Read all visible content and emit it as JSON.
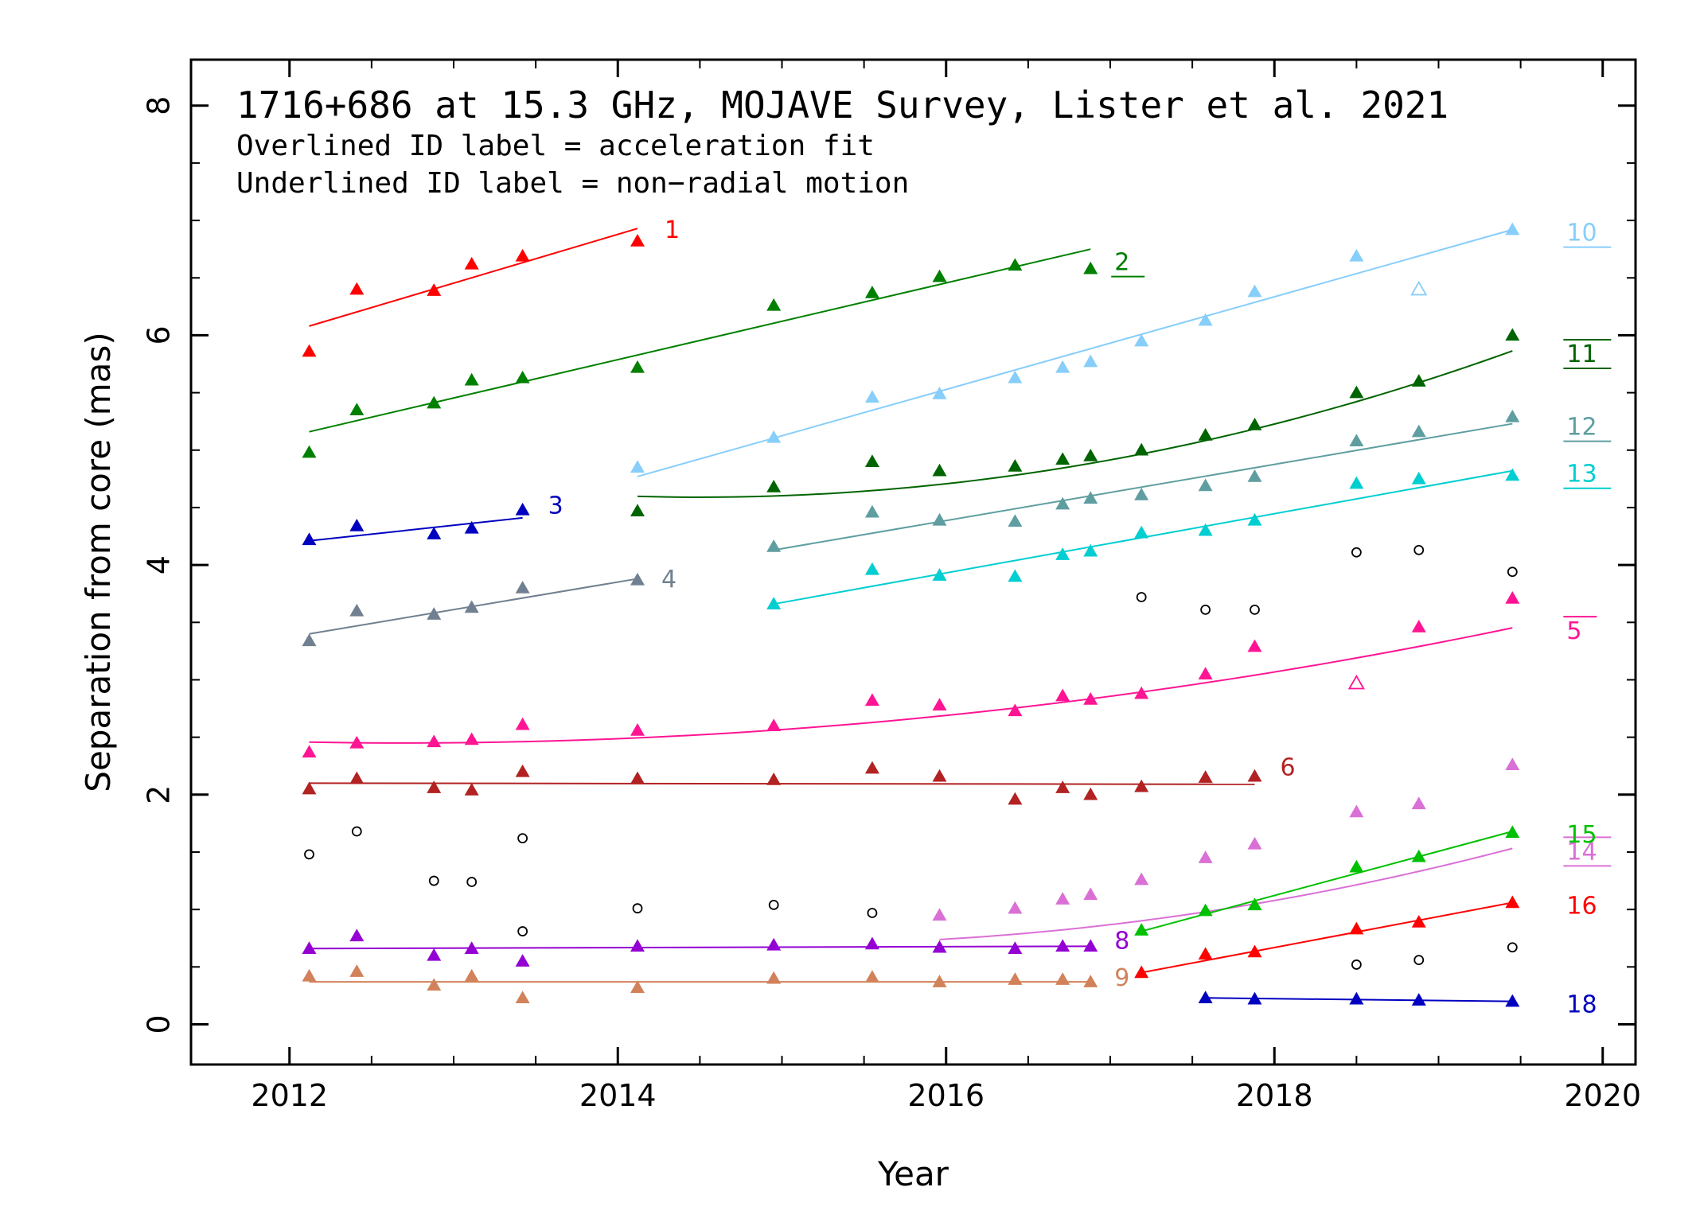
{
  "chart_data": {
    "type": "scatter",
    "title": "1716+686 at 15.3 GHz, MOJAVE Survey, Lister et al. 2021",
    "notes": [
      "Overlined ID label = acceleration fit",
      "Underlined ID label = non−radial motion"
    ],
    "xlabel": "Year",
    "ylabel": "Separation from core (mas)",
    "xlim": [
      2011.4,
      2020.2
    ],
    "ylim": [
      -0.35,
      8.4
    ],
    "xticks": [
      2012,
      2014,
      2016,
      2018,
      2020
    ],
    "yticks": [
      0,
      2,
      4,
      6,
      8
    ],
    "series": [
      {
        "name": "1",
        "color": "#ff0000",
        "decoration": "none",
        "x": [
          2012.12,
          2012.41,
          2012.88,
          2013.11,
          2013.42,
          2014.12
        ],
        "y": [
          5.86,
          6.4,
          6.39,
          6.62,
          6.69,
          6.82
        ],
        "fit": {
          "kind": "linear",
          "x": [
            2012.12,
            2014.12
          ],
          "y": [
            6.08,
            6.93
          ]
        }
      },
      {
        "name": "2",
        "color": "#008000",
        "decoration": "underline",
        "x": [
          2012.12,
          2012.41,
          2012.88,
          2013.11,
          2013.42,
          2014.12,
          2014.95,
          2015.55,
          2015.96,
          2016.42,
          2016.88
        ],
        "y": [
          4.98,
          5.35,
          5.41,
          5.61,
          5.63,
          5.72,
          6.26,
          6.37,
          6.51,
          6.61,
          6.58
        ],
        "fit": {
          "kind": "linear",
          "x": [
            2012.12,
            2016.88
          ],
          "y": [
            5.16,
            6.75
          ]
        }
      },
      {
        "name": "3",
        "color": "#0000c0",
        "decoration": "none",
        "x": [
          2012.12,
          2012.41,
          2012.88,
          2013.11,
          2013.42
        ],
        "y": [
          4.22,
          4.34,
          4.27,
          4.32,
          4.48
        ],
        "fit": {
          "kind": "linear",
          "x": [
            2012.12,
            2013.42
          ],
          "y": [
            4.21,
            4.41
          ]
        }
      },
      {
        "name": "4",
        "color": "#708090",
        "decoration": "none",
        "x": [
          2012.12,
          2012.41,
          2012.88,
          2013.11,
          2013.42,
          2014.12
        ],
        "y": [
          3.34,
          3.6,
          3.57,
          3.63,
          3.8,
          3.87
        ],
        "fit": {
          "kind": "linear",
          "x": [
            2012.12,
            2014.12
          ],
          "y": [
            3.4,
            3.88
          ]
        }
      },
      {
        "name": "5",
        "color": "#ff1493",
        "decoration": "overline",
        "x": [
          2012.12,
          2012.41,
          2012.88,
          2013.11,
          2013.42,
          2014.12,
          2014.95,
          2015.55,
          2015.96,
          2016.42,
          2016.71,
          2016.88,
          2017.19,
          2017.58,
          2017.88,
          2018.88,
          2019.45
        ],
        "y": [
          2.37,
          2.45,
          2.46,
          2.48,
          2.61,
          2.56,
          2.6,
          2.82,
          2.78,
          2.73,
          2.86,
          2.83,
          2.88,
          3.05,
          3.29,
          3.46,
          3.71
        ],
        "fit": {
          "kind": "quadratic",
          "x": [
            2012.12,
            2019.45
          ],
          "vertex": [
            2012.7,
            2.45
          ],
          "a": 0.022
        },
        "open_points": {
          "x": [
            2018.5
          ],
          "y": [
            2.97
          ]
        }
      },
      {
        "name": "6",
        "color": "#b22222",
        "decoration": "none",
        "x": [
          2012.12,
          2012.41,
          2012.88,
          2013.11,
          2013.42,
          2014.12,
          2014.95,
          2015.55,
          2015.96,
          2016.42,
          2016.71,
          2016.88,
          2017.19,
          2017.58,
          2017.88
        ],
        "y": [
          2.05,
          2.14,
          2.06,
          2.04,
          2.2,
          2.14,
          2.13,
          2.23,
          2.16,
          1.96,
          2.06,
          2.0,
          2.07,
          2.15,
          2.16
        ],
        "fit": {
          "kind": "linear",
          "x": [
            2012.12,
            2017.88
          ],
          "y": [
            2.1,
            2.09
          ]
        }
      },
      {
        "name": "8",
        "color": "#9400d3",
        "decoration": "none",
        "x": [
          2012.12,
          2012.41,
          2012.88,
          2013.11,
          2013.42,
          2014.12,
          2014.95,
          2015.55,
          2015.96,
          2016.42,
          2016.71,
          2016.88
        ],
        "y": [
          0.66,
          0.77,
          0.6,
          0.66,
          0.55,
          0.68,
          0.69,
          0.7,
          0.67,
          0.66,
          0.68,
          0.68
        ],
        "fit": {
          "kind": "linear",
          "x": [
            2012.12,
            2016.88
          ],
          "y": [
            0.66,
            0.68
          ]
        }
      },
      {
        "name": "9",
        "color": "#d2825a",
        "decoration": "none",
        "x": [
          2012.12,
          2012.41,
          2012.88,
          2013.11,
          2013.42,
          2014.12,
          2014.95,
          2015.55,
          2015.96,
          2016.42,
          2016.71,
          2016.88
        ],
        "y": [
          0.42,
          0.46,
          0.34,
          0.42,
          0.23,
          0.32,
          0.4,
          0.41,
          0.37,
          0.39,
          0.39,
          0.37
        ],
        "fit": {
          "kind": "linear",
          "x": [
            2012.12,
            2016.88
          ],
          "y": [
            0.37,
            0.37
          ]
        }
      },
      {
        "name": "10",
        "color": "#87cefa",
        "decoration": "underline",
        "x": [
          2014.12,
          2014.95,
          2015.55,
          2015.96,
          2016.42,
          2016.71,
          2016.88,
          2017.19,
          2017.58,
          2017.88,
          2018.5,
          2019.45
        ],
        "y": [
          4.85,
          5.11,
          5.46,
          5.49,
          5.63,
          5.72,
          5.77,
          5.95,
          6.13,
          6.38,
          6.69,
          6.92
        ],
        "fit": {
          "kind": "linear",
          "x": [
            2014.12,
            2019.45
          ],
          "y": [
            4.77,
            6.92
          ]
        },
        "open_points": {
          "x": [
            2018.88
          ],
          "y": [
            6.4
          ]
        }
      },
      {
        "name": "11",
        "color": "#006400",
        "decoration": "overline-underline",
        "x": [
          2014.12,
          2014.95,
          2015.55,
          2015.96,
          2016.42,
          2016.71,
          2016.88,
          2017.19,
          2017.58,
          2017.88,
          2018.5,
          2018.88,
          2019.45
        ],
        "y": [
          4.47,
          4.68,
          4.9,
          4.82,
          4.86,
          4.92,
          4.95,
          5.0,
          5.13,
          5.22,
          5.5,
          5.6,
          6.0
        ],
        "fit": {
          "kind": "quadratic",
          "x": [
            2014.12,
            2019.45
          ],
          "vertex": [
            2014.5,
            4.59
          ],
          "a": 0.052
        }
      },
      {
        "name": "12",
        "color": "#5f9ea0",
        "decoration": "underline",
        "x": [
          2014.95,
          2015.55,
          2015.96,
          2016.42,
          2016.71,
          2016.88,
          2017.19,
          2017.58,
          2017.88,
          2018.5,
          2018.88,
          2019.45
        ],
        "y": [
          4.16,
          4.46,
          4.39,
          4.38,
          4.53,
          4.58,
          4.61,
          4.69,
          4.77,
          5.08,
          5.16,
          5.29
        ],
        "fit": {
          "kind": "linear",
          "x": [
            2014.95,
            2019.45
          ],
          "y": [
            4.13,
            5.23
          ]
        }
      },
      {
        "name": "13",
        "color": "#00ced1",
        "decoration": "underline",
        "x": [
          2014.95,
          2015.55,
          2015.96,
          2016.42,
          2016.71,
          2016.88,
          2017.19,
          2017.58,
          2017.88,
          2018.5,
          2018.88,
          2019.45
        ],
        "y": [
          3.66,
          3.96,
          3.91,
          3.9,
          4.09,
          4.12,
          4.28,
          4.3,
          4.39,
          4.71,
          4.75,
          4.78
        ],
        "fit": {
          "kind": "linear",
          "x": [
            2014.95,
            2019.45
          ],
          "y": [
            3.66,
            4.82
          ]
        }
      },
      {
        "name": "14",
        "color": "#da70d6",
        "decoration": "overline-underline",
        "x": [
          2015.96,
          2016.42,
          2016.71,
          2016.88,
          2017.19,
          2017.58,
          2017.88,
          2018.5,
          2018.88,
          2019.45
        ],
        "y": [
          0.95,
          1.01,
          1.09,
          1.13,
          1.26,
          1.45,
          1.57,
          1.85,
          1.92,
          2.26
        ],
        "fit": {
          "kind": "quadratic",
          "x": [
            2015.96,
            2019.45
          ],
          "vertex": [
            2015.0,
            0.7
          ],
          "a": 0.042
        }
      },
      {
        "name": "15",
        "color": "#00c000",
        "decoration": "none",
        "x": [
          2017.19,
          2017.58,
          2017.88,
          2018.5,
          2018.88,
          2019.45
        ],
        "y": [
          0.82,
          0.99,
          1.04,
          1.37,
          1.46,
          1.67
        ],
        "fit": {
          "kind": "linear",
          "x": [
            2017.19,
            2019.45
          ],
          "y": [
            0.81,
            1.68
          ]
        }
      },
      {
        "name": "16",
        "color": "#ff0000",
        "decoration": "none",
        "x": [
          2017.19,
          2017.58,
          2017.88,
          2018.5,
          2018.88,
          2019.45
        ],
        "y": [
          0.45,
          0.61,
          0.63,
          0.83,
          0.89,
          1.06
        ],
        "fit": {
          "kind": "linear",
          "x": [
            2017.19,
            2019.45
          ],
          "y": [
            0.45,
            1.06
          ]
        }
      },
      {
        "name": "18",
        "color": "#0000c0",
        "decoration": "none",
        "x": [
          2017.58,
          2017.88,
          2018.5,
          2018.88,
          2019.45
        ],
        "y": [
          0.23,
          0.22,
          0.22,
          0.21,
          0.2
        ],
        "fit": {
          "kind": "linear",
          "x": [
            2017.58,
            2019.45
          ],
          "y": [
            0.23,
            0.2
          ]
        }
      }
    ],
    "unassigned": {
      "color": "#000000",
      "x": [
        2012.12,
        2012.41,
        2012.88,
        2013.11,
        2013.42,
        2013.42,
        2014.12,
        2014.95,
        2015.55,
        2017.19,
        2017.58,
        2017.88,
        2018.5,
        2018.88,
        2019.45,
        2018.5,
        2018.88,
        2019.45
      ],
      "y": [
        1.48,
        1.68,
        1.25,
        1.24,
        1.62,
        0.81,
        1.01,
        1.04,
        0.97,
        3.72,
        3.61,
        3.61,
        4.11,
        4.13,
        3.94,
        0.52,
        0.56,
        0.67
      ]
    }
  }
}
